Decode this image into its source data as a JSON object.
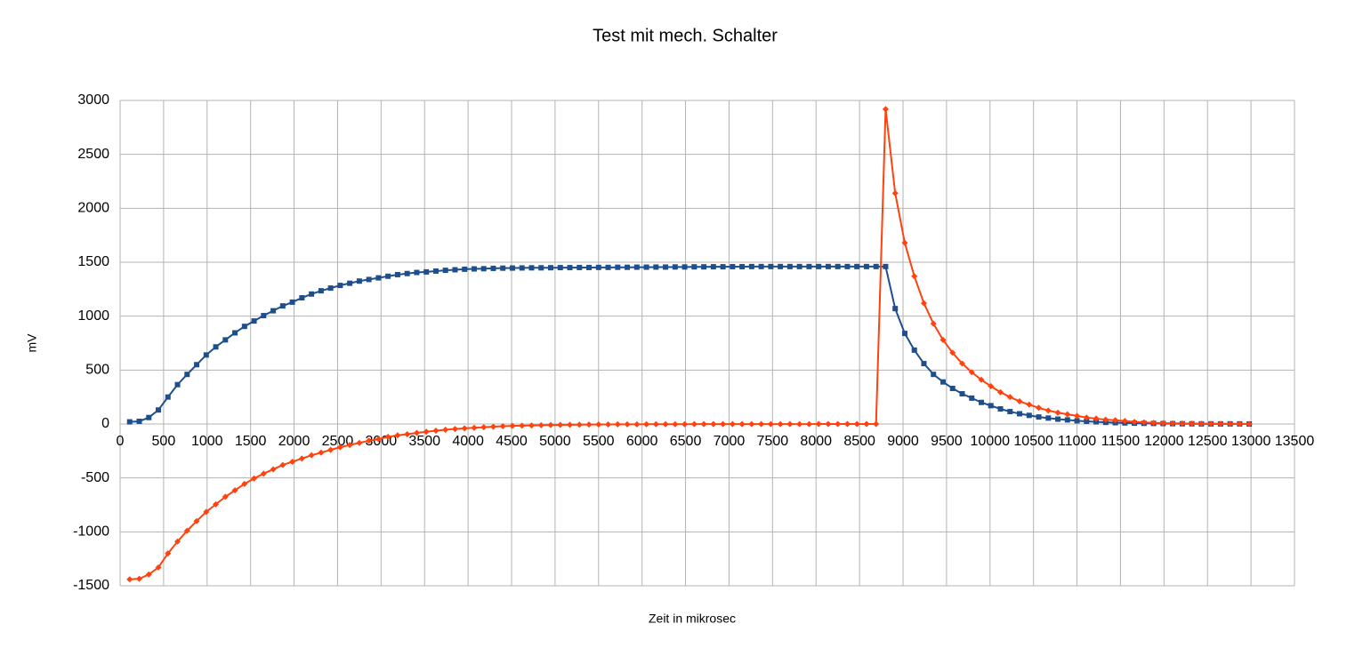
{
  "chart_data": {
    "type": "line",
    "title": "Test mit mech. Schalter",
    "xlabel": "Zeit in mikrosec",
    "ylabel": "mV",
    "x": [
      110,
      220,
      330,
      440,
      550,
      660,
      770,
      880,
      990,
      1100,
      1210,
      1320,
      1430,
      1540,
      1650,
      1760,
      1870,
      1980,
      2090,
      2200,
      2310,
      2420,
      2530,
      2640,
      2750,
      2860,
      2970,
      3080,
      3190,
      3300,
      3410,
      3520,
      3630,
      3740,
      3850,
      3960,
      4070,
      4180,
      4290,
      4400,
      4510,
      4620,
      4730,
      4840,
      4950,
      5060,
      5170,
      5280,
      5390,
      5500,
      5610,
      5720,
      5830,
      5940,
      6050,
      6160,
      6270,
      6380,
      6490,
      6600,
      6710,
      6820,
      6930,
      7040,
      7150,
      7260,
      7370,
      7480,
      7590,
      7700,
      7810,
      7920,
      8030,
      8140,
      8250,
      8360,
      8470,
      8580,
      8690,
      8800,
      8910,
      9020,
      9130,
      9240,
      9350,
      9460,
      9570,
      9680,
      9790,
      9900,
      10010,
      10120,
      10230,
      10340,
      10450,
      10560,
      10670,
      10780,
      10890,
      11000,
      11110,
      11220,
      11330,
      11440,
      11550,
      11660,
      11770,
      11880,
      11990,
      12100,
      12210,
      12320,
      12430,
      12540,
      12650,
      12760,
      12870,
      12980
    ],
    "series": [
      {
        "color": "#1f4e8c",
        "marker": "square",
        "values": [
          20,
          25,
          60,
          130,
          250,
          365,
          460,
          550,
          640,
          715,
          780,
          845,
          905,
          955,
          1005,
          1050,
          1095,
          1130,
          1170,
          1205,
          1235,
          1260,
          1285,
          1305,
          1325,
          1340,
          1355,
          1370,
          1385,
          1395,
          1405,
          1410,
          1418,
          1425,
          1430,
          1435,
          1438,
          1440,
          1443,
          1445,
          1446,
          1447,
          1448,
          1448,
          1449,
          1450,
          1450,
          1451,
          1451,
          1452,
          1452,
          1453,
          1453,
          1454,
          1454,
          1455,
          1455,
          1456,
          1456,
          1457,
          1457,
          1458,
          1458,
          1459,
          1459,
          1460,
          1460,
          1460,
          1460,
          1460,
          1460,
          1460,
          1460,
          1460,
          1460,
          1460,
          1460,
          1460,
          1460,
          1460,
          1070,
          840,
          685,
          560,
          460,
          390,
          330,
          280,
          240,
          200,
          170,
          140,
          115,
          95,
          80,
          65,
          55,
          45,
          38,
          30,
          25,
          20,
          15,
          12,
          10,
          8,
          6,
          5,
          4,
          3,
          2,
          2,
          1,
          1,
          1,
          1,
          1,
          0
        ]
      },
      {
        "color": "#ff420e",
        "marker": "diamond",
        "values": [
          -1440,
          -1435,
          -1395,
          -1330,
          -1200,
          -1090,
          -990,
          -900,
          -815,
          -745,
          -675,
          -615,
          -555,
          -505,
          -460,
          -420,
          -380,
          -350,
          -320,
          -290,
          -265,
          -240,
          -215,
          -195,
          -175,
          -155,
          -140,
          -120,
          -105,
          -95,
          -82,
          -72,
          -62,
          -54,
          -46,
          -40,
          -35,
          -30,
          -25,
          -21,
          -18,
          -15,
          -13,
          -11,
          -9,
          -8,
          -7,
          -6,
          -5,
          -4,
          -4,
          -3,
          -3,
          -3,
          -2,
          -2,
          -2,
          -2,
          -2,
          -1,
          -1,
          -1,
          -1,
          -1,
          -1,
          -1,
          -1,
          -1,
          -1,
          -1,
          -1,
          -1,
          0,
          0,
          0,
          0,
          0,
          0,
          0,
          2920,
          2140,
          1680,
          1370,
          1120,
          930,
          780,
          660,
          560,
          480,
          410,
          350,
          295,
          250,
          210,
          180,
          150,
          125,
          105,
          90,
          75,
          60,
          50,
          40,
          35,
          28,
          20,
          15,
          10,
          8,
          6,
          5,
          4,
          3,
          2,
          2,
          1,
          1,
          0
        ]
      }
    ],
    "xlim": [
      0,
      13500
    ],
    "xticks": [
      0,
      500,
      1000,
      1500,
      2000,
      2500,
      3000,
      3500,
      4000,
      4500,
      5000,
      5500,
      6000,
      6500,
      7000,
      7500,
      8000,
      8500,
      9000,
      9500,
      10000,
      10500,
      11000,
      11500,
      12000,
      12500,
      13000,
      13500
    ],
    "ylim": [
      -1500,
      3000
    ],
    "yticks": [
      -1500,
      -1000,
      -500,
      0,
      500,
      1000,
      1500,
      2000,
      2500,
      3000
    ],
    "grid": true
  }
}
